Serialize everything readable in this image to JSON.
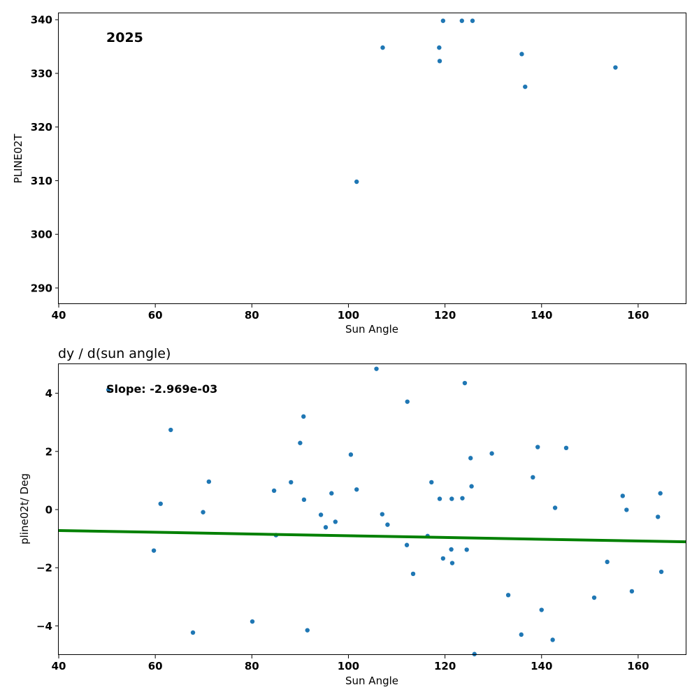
{
  "chart_data": [
    {
      "type": "scatter",
      "title": "",
      "annotation": "2025",
      "xlabel": "Sun Angle",
      "ylabel": "PLINE02T",
      "xlim": [
        40,
        170
      ],
      "ylim": [
        287,
        341.2
      ],
      "xticks": [
        40,
        60,
        80,
        100,
        120,
        140,
        160
      ],
      "yticks": [
        290,
        300,
        310,
        320,
        330,
        340
      ],
      "grid": false,
      "point_color": "#1f77b4",
      "points": [
        {
          "x": 101.7,
          "y": 309.8
        },
        {
          "x": 107.1,
          "y": 334.8
        },
        {
          "x": 118.8,
          "y": 334.8
        },
        {
          "x": 118.9,
          "y": 332.3
        },
        {
          "x": 119.6,
          "y": 339.8
        },
        {
          "x": 123.5,
          "y": 339.8
        },
        {
          "x": 125.7,
          "y": 339.8
        },
        {
          "x": 135.9,
          "y": 333.6
        },
        {
          "x": 136.6,
          "y": 327.5
        },
        {
          "x": 155.3,
          "y": 331.1
        }
      ]
    },
    {
      "type": "scatter",
      "title": "dy / d(sun angle)",
      "annotation": "Slope: -2.969e-03",
      "xlabel": "Sun Angle",
      "ylabel": "pline02t/ Deg",
      "xlim": [
        40,
        170
      ],
      "ylim": [
        -5,
        5
      ],
      "xticks": [
        40,
        60,
        80,
        100,
        120,
        140,
        160
      ],
      "yticks": [
        -4,
        -2,
        0,
        2,
        4
      ],
      "ytick_labels": [
        "−4",
        "−2",
        "0",
        "2",
        "4"
      ],
      "grid": false,
      "point_color": "#1f77b4",
      "fit_line": {
        "color": "#008000",
        "x": [
          40,
          170
        ],
        "y": [
          -0.72,
          -1.11
        ]
      },
      "points": [
        {
          "x": 50.3,
          "y": 4.12
        },
        {
          "x": 59.7,
          "y": -1.41
        },
        {
          "x": 61.1,
          "y": 0.2
        },
        {
          "x": 63.2,
          "y": 2.74
        },
        {
          "x": 67.8,
          "y": -4.23
        },
        {
          "x": 69.9,
          "y": -0.09
        },
        {
          "x": 71.1,
          "y": 0.96
        },
        {
          "x": 80.1,
          "y": -3.85
        },
        {
          "x": 84.6,
          "y": 0.65
        },
        {
          "x": 85.0,
          "y": -0.88
        },
        {
          "x": 88.1,
          "y": 0.94
        },
        {
          "x": 90.0,
          "y": 2.29
        },
        {
          "x": 90.7,
          "y": 3.2
        },
        {
          "x": 90.8,
          "y": 0.34
        },
        {
          "x": 91.5,
          "y": -4.15
        },
        {
          "x": 94.3,
          "y": -0.18
        },
        {
          "x": 95.3,
          "y": -0.61
        },
        {
          "x": 96.5,
          "y": 0.56
        },
        {
          "x": 97.3,
          "y": -0.42
        },
        {
          "x": 100.5,
          "y": 1.89
        },
        {
          "x": 101.7,
          "y": 0.69
        },
        {
          "x": 105.8,
          "y": 4.84
        },
        {
          "x": 107.0,
          "y": -0.16
        },
        {
          "x": 108.1,
          "y": -0.52
        },
        {
          "x": 112.1,
          "y": -1.22
        },
        {
          "x": 112.2,
          "y": 3.71
        },
        {
          "x": 113.4,
          "y": -2.21
        },
        {
          "x": 116.4,
          "y": -0.91
        },
        {
          "x": 117.2,
          "y": 0.94
        },
        {
          "x": 118.9,
          "y": 0.37
        },
        {
          "x": 119.6,
          "y": -1.68
        },
        {
          "x": 121.3,
          "y": -1.37
        },
        {
          "x": 121.4,
          "y": 0.37
        },
        {
          "x": 121.5,
          "y": -1.84
        },
        {
          "x": 123.6,
          "y": 0.39
        },
        {
          "x": 124.1,
          "y": 4.35
        },
        {
          "x": 124.5,
          "y": -1.38
        },
        {
          "x": 125.3,
          "y": 1.77
        },
        {
          "x": 125.5,
          "y": 0.8
        },
        {
          "x": 126.1,
          "y": -4.97
        },
        {
          "x": 129.7,
          "y": 1.93
        },
        {
          "x": 133.1,
          "y": -2.94
        },
        {
          "x": 135.8,
          "y": -4.3
        },
        {
          "x": 138.2,
          "y": 1.11
        },
        {
          "x": 139.2,
          "y": 2.15
        },
        {
          "x": 140.0,
          "y": -3.45
        },
        {
          "x": 142.3,
          "y": -4.48
        },
        {
          "x": 142.8,
          "y": 0.06
        },
        {
          "x": 145.1,
          "y": 2.12
        },
        {
          "x": 150.9,
          "y": -3.03
        },
        {
          "x": 153.6,
          "y": -1.8
        },
        {
          "x": 156.8,
          "y": 0.47
        },
        {
          "x": 157.6,
          "y": -0.01
        },
        {
          "x": 158.7,
          "y": -2.81
        },
        {
          "x": 164.1,
          "y": -0.25
        },
        {
          "x": 164.6,
          "y": 0.56
        },
        {
          "x": 164.8,
          "y": -2.14
        }
      ]
    }
  ]
}
